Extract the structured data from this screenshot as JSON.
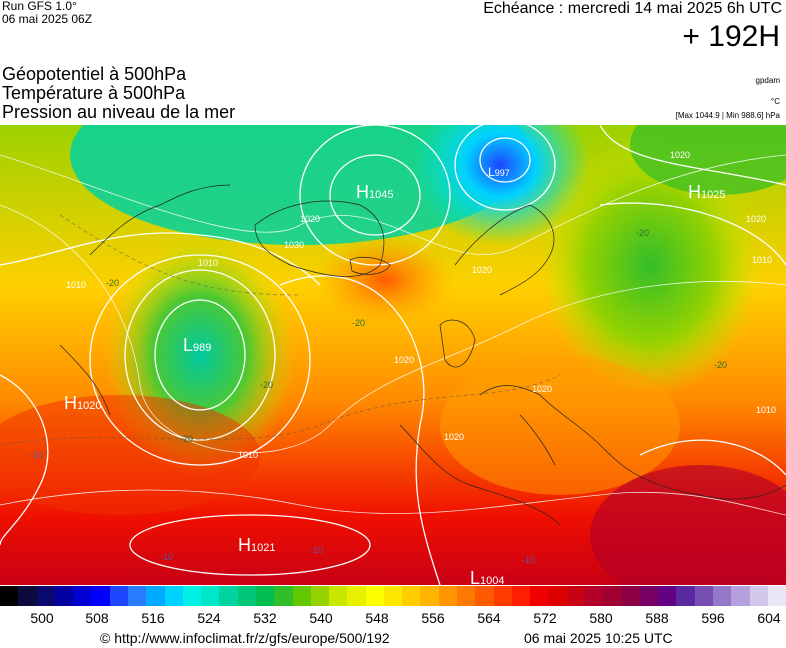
{
  "header": {
    "run": "Run GFS 1.0°",
    "run_date": "06 mai 2025 06Z",
    "echeance": "Echéance : mercredi 14 mai 2025 6h UTC",
    "hour": "+ 192H",
    "titles": [
      "Géopotentiel à 500hPa",
      "Température à 500hPa",
      "Pression au niveau de la mer"
    ],
    "unit_gpdam": "gpdam",
    "unit_c": "°C",
    "maxmin": "[Max 1044.9 | Min 988.6] hPa"
  },
  "map": {
    "pressure_centers": [
      {
        "type": "H",
        "value": "1045"
      },
      {
        "type": "L",
        "value": "989"
      },
      {
        "type": "H",
        "value": "1020"
      },
      {
        "type": "H",
        "value": "1025"
      },
      {
        "type": "H",
        "value": "1021"
      },
      {
        "type": "L",
        "value": "1004"
      },
      {
        "type": "L",
        "value": "997"
      }
    ],
    "isobar_labels": [
      "1010",
      "1030",
      "1020",
      "1010",
      "1020",
      "1020",
      "1020",
      "1020",
      "1010",
      "1010",
      "1020",
      "1010",
      "1020"
    ],
    "temp_labels": [
      "-20",
      "-20",
      "-20",
      "-10",
      "-10",
      "-10",
      "-10",
      "-20",
      "-20",
      "-20"
    ]
  },
  "legend": {
    "colors": [
      "#000000",
      "#0a0a3c",
      "#0a0a6e",
      "#0000a0",
      "#0000d2",
      "#0000ff",
      "#1e46ff",
      "#287dff",
      "#00aaff",
      "#00d2ff",
      "#00f0e6",
      "#00e6c8",
      "#00d2a0",
      "#00c878",
      "#00be50",
      "#32be28",
      "#64c800",
      "#96d200",
      "#c8e600",
      "#e6f000",
      "#ffff00",
      "#ffe600",
      "#ffcd00",
      "#ffb400",
      "#ff9600",
      "#ff7800",
      "#ff5a00",
      "#ff3c00",
      "#ff1e00",
      "#f00000",
      "#dc0000",
      "#c80014",
      "#b40028",
      "#a00032",
      "#8c0046",
      "#780064",
      "#640082",
      "#5a28a0",
      "#7850b4",
      "#9678c8",
      "#b4a0dc",
      "#d2c8ec",
      "#ebe6f5"
    ],
    "ticks": [
      "500",
      "508",
      "516",
      "524",
      "532",
      "540",
      "548",
      "556",
      "564",
      "572",
      "580",
      "588",
      "596",
      "604"
    ]
  },
  "footer": {
    "url": "© http://www.infoclimat.fr/z/gfs/europe/500/192",
    "date": "06 mai 2025 10:25 UTC"
  }
}
